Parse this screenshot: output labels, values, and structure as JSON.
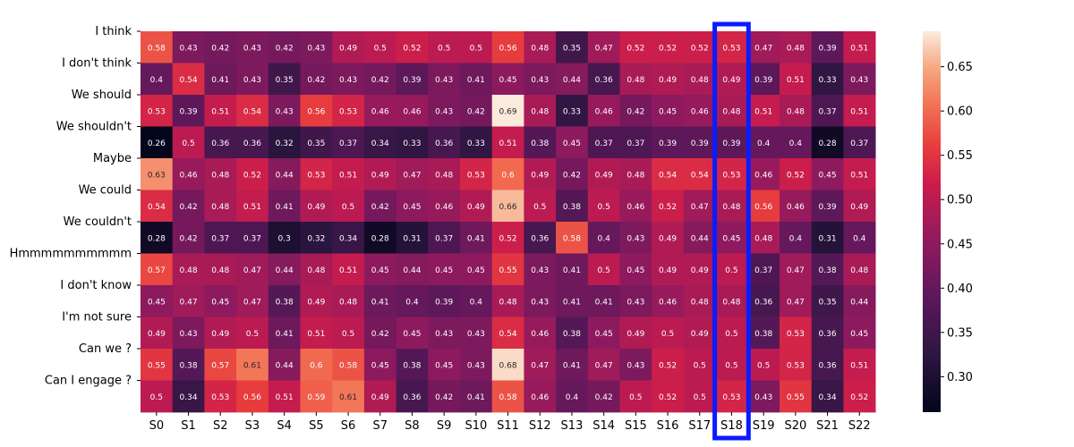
{
  "chart_data": {
    "type": "heatmap",
    "title": "",
    "xlabel": "",
    "ylabel": "",
    "x_categories": [
      "S0",
      "S1",
      "S2",
      "S3",
      "S4",
      "S5",
      "S6",
      "S7",
      "S8",
      "S9",
      "S10",
      "S11",
      "S12",
      "S13",
      "S14",
      "S15",
      "S16",
      "S17",
      "S18",
      "S19",
      "S20",
      "S21",
      "S22"
    ],
    "y_categories": [
      "I think",
      "I don't think",
      "We should",
      "We shouldn't",
      "Maybe",
      "We could",
      "We couldn't",
      "Hmmmmmmmmmm",
      "I don't know",
      "I'm not sure",
      "Can we ?",
      "Can I engage ?"
    ],
    "y_tick_labels_visible_pattern": "one label per row, drawn above the row center",
    "values": [
      [
        0.58,
        0.43,
        0.42,
        0.43,
        0.42,
        0.43,
        0.49,
        0.5,
        0.52,
        0.5,
        0.5,
        0.56,
        0.48,
        0.35,
        0.47,
        0.52,
        0.52,
        0.52,
        0.53,
        0.47,
        0.48,
        0.39,
        0.51
      ],
      [
        0.4,
        0.54,
        0.41,
        0.43,
        0.35,
        0.42,
        0.43,
        0.42,
        0.39,
        0.43,
        0.41,
        0.45,
        0.43,
        0.44,
        0.36,
        0.48,
        0.49,
        0.48,
        0.49,
        0.39,
        0.51,
        0.33,
        0.43
      ],
      [
        0.53,
        0.39,
        0.51,
        0.54,
        0.43,
        0.56,
        0.53,
        0.46,
        0.46,
        0.43,
        0.42,
        0.69,
        0.48,
        0.33,
        0.46,
        0.42,
        0.45,
        0.46,
        0.48,
        0.51,
        0.48,
        0.37,
        0.51
      ],
      [
        0.26,
        0.5,
        0.36,
        0.36,
        0.32,
        0.35,
        0.37,
        0.34,
        0.33,
        0.36,
        0.33,
        0.51,
        0.38,
        0.45,
        0.37,
        0.37,
        0.39,
        0.39,
        0.39,
        0.4,
        0.4,
        0.28,
        0.37
      ],
      [
        0.63,
        0.46,
        0.48,
        0.52,
        0.44,
        0.53,
        0.51,
        0.49,
        0.47,
        0.48,
        0.53,
        0.6,
        0.49,
        0.42,
        0.49,
        0.48,
        0.54,
        0.54,
        0.53,
        0.46,
        0.52,
        0.45,
        0.51
      ],
      [
        0.54,
        0.42,
        0.48,
        0.51,
        0.41,
        0.49,
        0.5,
        0.42,
        0.45,
        0.46,
        0.49,
        0.66,
        0.5,
        0.38,
        0.5,
        0.46,
        0.52,
        0.47,
        0.48,
        0.56,
        0.46,
        0.39,
        0.49
      ],
      [
        0.28,
        0.42,
        0.37,
        0.37,
        0.3,
        0.32,
        0.34,
        0.28,
        0.31,
        0.37,
        0.41,
        0.52,
        0.36,
        0.58,
        0.4,
        0.43,
        0.49,
        0.44,
        0.45,
        0.48,
        0.4,
        0.31,
        0.4
      ],
      [
        0.57,
        0.48,
        0.48,
        0.47,
        0.44,
        0.48,
        0.51,
        0.45,
        0.44,
        0.45,
        0.45,
        0.55,
        0.43,
        0.41,
        0.5,
        0.45,
        0.49,
        0.49,
        0.5,
        0.37,
        0.47,
        0.38,
        0.48
      ],
      [
        0.45,
        0.47,
        0.45,
        0.47,
        0.38,
        0.49,
        0.48,
        0.41,
        0.4,
        0.39,
        0.4,
        0.48,
        0.43,
        0.41,
        0.41,
        0.43,
        0.46,
        0.48,
        0.48,
        0.36,
        0.47,
        0.35,
        0.44
      ],
      [
        0.49,
        0.43,
        0.49,
        0.5,
        0.41,
        0.51,
        0.5,
        0.42,
        0.45,
        0.43,
        0.43,
        0.54,
        0.46,
        0.38,
        0.45,
        0.49,
        0.5,
        0.49,
        0.5,
        0.38,
        0.53,
        0.36,
        0.45
      ],
      [
        0.55,
        0.38,
        0.57,
        0.61,
        0.44,
        0.6,
        0.58,
        0.45,
        0.38,
        0.45,
        0.43,
        0.68,
        0.47,
        0.41,
        0.47,
        0.43,
        0.52,
        0.5,
        0.5,
        0.5,
        0.53,
        0.36,
        0.51
      ],
      [
        0.5,
        0.34,
        0.53,
        0.56,
        0.51,
        0.59,
        0.61,
        0.49,
        0.36,
        0.42,
        0.41,
        0.58,
        0.46,
        0.4,
        0.42,
        0.5,
        0.52,
        0.5,
        0.53,
        0.43,
        0.55,
        0.34,
        0.52
      ]
    ],
    "colormap": "rocket",
    "vmin": 0.26,
    "vmax": 0.69,
    "colorbar_ticks": [
      "0.30",
      "0.35",
      "0.40",
      "0.45",
      "0.50",
      "0.55",
      "0.60",
      "0.65"
    ],
    "highlighted_column": "S18",
    "highlight_color": "#0a1bff",
    "annotate_cells": true,
    "grid": false
  }
}
